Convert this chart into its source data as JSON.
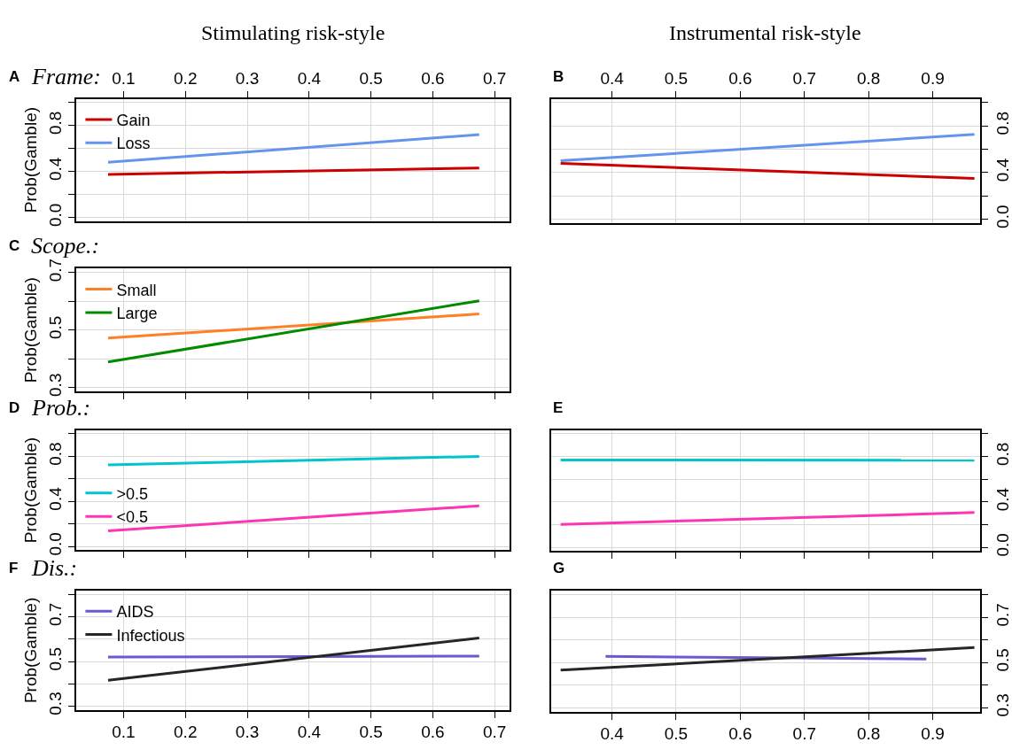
{
  "chart_data": [
    {
      "type": "line",
      "title": "Frame:",
      "annotations": [
        "A",
        "Stimulating risk-style"
      ],
      "ylabel": "Prob(Gamble)",
      "grid": true,
      "legend": "top left",
      "line_style": "solid",
      "x": [
        0.075,
        0.675
      ],
      "xlim": [
        0.023,
        0.724
      ],
      "xticks": [
        0.1,
        0.2,
        0.3,
        0.4,
        0.5,
        0.6,
        0.7
      ],
      "ylim": [
        -0.03,
        1.03
      ],
      "yticks": [
        {
          "value": 0,
          "label": "0.0"
        },
        {
          "value": 0.2,
          "label": null
        },
        0.4,
        {
          "value": 0.6,
          "label": null
        },
        0.8,
        {
          "value": 1.0,
          "label": null
        }
      ],
      "series": [
        {
          "name": "Gain",
          "color": "#cc0000",
          "values": [
            0.375,
            0.43
          ]
        },
        {
          "name": "Loss",
          "color": "#6495ed",
          "values": [
            0.48,
            0.72
          ]
        }
      ]
    },
    {
      "type": "line",
      "annotations": [
        "B",
        "Instrumental risk-style"
      ],
      "grid": true,
      "line_style": "solid",
      "x": [
        0.32,
        0.965
      ],
      "xlim": [
        0.305,
        0.974
      ],
      "xticks": [
        0.4,
        0.5,
        0.6,
        0.7,
        0.8,
        0.9
      ],
      "ylim": [
        -0.03,
        1.03
      ],
      "yticks": [
        {
          "value": 0,
          "label": "0.0"
        },
        {
          "value": 0.2,
          "label": null
        },
        0.4,
        {
          "value": 0.6,
          "label": null
        },
        0.8,
        {
          "value": 1.0,
          "label": null
        }
      ],
      "series": [
        {
          "color": "#6495ed",
          "values": [
            0.5,
            0.727
          ]
        },
        {
          "color": "#cc0000",
          "values": [
            0.478,
            0.349
          ]
        }
      ]
    },
    {
      "type": "line",
      "title": "Scope.:",
      "annotations": [
        "C"
      ],
      "ylabel": "Prob(Gamble)",
      "grid": true,
      "legend": "top left",
      "line_style": "solid",
      "tick_labels": "y",
      "x": [
        0.075,
        0.675
      ],
      "xlim": [
        0.023,
        0.724
      ],
      "xticks": [
        0.1,
        0.2,
        0.3,
        0.4,
        0.5,
        0.6,
        0.7
      ],
      "ylim": [
        0.286,
        0.714
      ],
      "yticks": [
        0.3,
        {
          "value": 0.4,
          "label": null
        },
        0.5,
        {
          "value": 0.6,
          "label": null
        },
        0.7
      ],
      "series": [
        {
          "name": "Small",
          "color": "#ff7f24",
          "values": [
            0.472,
            0.556
          ]
        },
        {
          "name": "Large",
          "color": "#008b00",
          "values": [
            0.389,
            0.602
          ]
        }
      ]
    },
    {
      "type": "line",
      "title": "Prob.:",
      "annotations": [
        "D"
      ],
      "ylabel": "Prob(Gamble)",
      "grid": true,
      "legend": "left",
      "line_style": "solid",
      "tick_labels": "y",
      "x": [
        0.075,
        0.675
      ],
      "xlim": [
        0.023,
        0.724
      ],
      "xticks": [
        0.1,
        0.2,
        0.3,
        0.4,
        0.5,
        0.6,
        0.7
      ],
      "ylim": [
        -0.03,
        1.03
      ],
      "yticks": [
        {
          "value": 0,
          "label": "0.0"
        },
        {
          "value": 0.2,
          "label": null
        },
        0.4,
        {
          "value": 0.6,
          "label": null
        },
        0.8,
        {
          "value": 1.0,
          "label": null
        }
      ],
      "series": [
        {
          "name": ">0.5",
          "color": "#00c5cd",
          "values": [
            0.725,
            0.8
          ]
        },
        {
          "name": "<0.5",
          "color": "#ff34b3",
          "values": [
            0.139,
            0.361
          ]
        }
      ]
    },
    {
      "type": "line",
      "annotations": [
        "E"
      ],
      "grid": true,
      "line_style": "solid",
      "tick_labels": "y",
      "x": [
        0.32,
        0.965
      ],
      "xlim": [
        0.305,
        0.974
      ],
      "xticks": [
        0.4,
        0.5,
        0.6,
        0.7,
        0.8,
        0.9
      ],
      "ylim": [
        -0.03,
        1.03
      ],
      "yticks": [
        {
          "value": 0,
          "label": "0.0"
        },
        {
          "value": 0.2,
          "label": null
        },
        0.4,
        {
          "value": 0.6,
          "label": null
        },
        0.8,
        {
          "value": 1.0,
          "label": null
        }
      ],
      "series": [
        {
          "color": "#00c5cd",
          "values": [
            0.77,
            0.767
          ]
        },
        {
          "color": "#ff34b3",
          "values": [
            0.203,
            0.307
          ]
        }
      ]
    },
    {
      "type": "line",
      "title": "Dis.:",
      "annotations": [
        "F"
      ],
      "ylabel": "Prob(Gamble)",
      "grid": true,
      "legend": "top left",
      "line_style": "solid",
      "x": [
        0.075,
        0.675
      ],
      "xlim": [
        0.023,
        0.724
      ],
      "xticks": [
        0.1,
        0.2,
        0.3,
        0.4,
        0.5,
        0.6,
        0.7
      ],
      "ylim": [
        0.282,
        0.818
      ],
      "yticks": [
        0.3,
        {
          "value": 0.4,
          "label": null
        },
        0.5,
        {
          "value": 0.6,
          "label": null
        },
        0.7,
        {
          "value": 0.8,
          "label": null
        }
      ],
      "series": [
        {
          "name": "AIDS",
          "color": "#6a5acd",
          "values": [
            0.52,
            0.524
          ]
        },
        {
          "name": "Infectious",
          "color": "#262626",
          "values": [
            0.416,
            0.605
          ]
        }
      ]
    },
    {
      "type": "line",
      "annotations": [
        "G"
      ],
      "grid": true,
      "line_style": "solid",
      "xlim": [
        0.305,
        0.974
      ],
      "xticks": [
        0.4,
        0.5,
        0.6,
        0.7,
        0.8,
        0.9
      ],
      "ylim": [
        0.282,
        0.818
      ],
      "yticks": [
        0.3,
        {
          "value": 0.4,
          "label": null
        },
        0.5,
        {
          "value": 0.6,
          "label": null
        },
        0.7,
        {
          "value": 0.8,
          "label": null
        }
      ],
      "series": [
        {
          "color": "#6a5acd",
          "x": [
            0.39,
            0.89
          ],
          "values": [
            0.527,
            0.515
          ]
        },
        {
          "color": "#262626",
          "x": [
            0.32,
            0.965
          ],
          "values": [
            0.466,
            0.566
          ]
        }
      ]
    }
  ]
}
